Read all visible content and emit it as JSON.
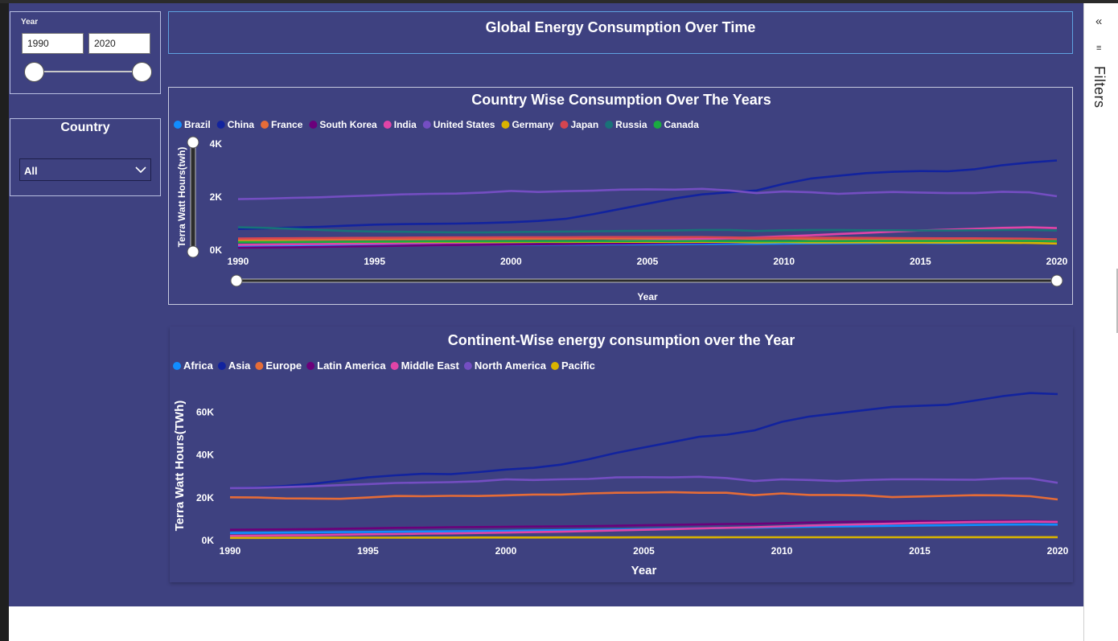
{
  "slicer_year": {
    "label": "Year",
    "from": "1990",
    "to": "2020"
  },
  "slicer_country": {
    "title": "Country",
    "value": "All"
  },
  "report_title": "Global Energy Consumption Over Time",
  "filters_pane": {
    "label": "Filters"
  },
  "colors": {
    "Brazil": "#118dff",
    "China": "#12239e",
    "France": "#e66c37",
    "South Korea": "#6b007b",
    "India": "#e044a7",
    "United States": "#744ec2",
    "Germany": "#d9b300",
    "Japan": "#d64550",
    "Russia": "#197278",
    "Canada": "#1aab40",
    "Africa": "#118dff",
    "Asia": "#12239e",
    "Europe": "#e66c37",
    "Latin America": "#6b007b",
    "Middle East": "#e044a7",
    "North America": "#744ec2",
    "Pacific": "#d9b300"
  },
  "chart_data": [
    {
      "type": "line",
      "title": "Country Wise Consumption Over The Years",
      "xlabel": "Year",
      "ylabel": "Terra Watt Hours(twh)",
      "xlim": [
        1990,
        2020
      ],
      "ylim": [
        0,
        4000
      ],
      "xticks": [
        1990,
        1995,
        2000,
        2005,
        2010,
        2015,
        2020
      ],
      "yticks": [
        {
          "v": 0,
          "label": "0K"
        },
        {
          "v": 2000,
          "label": "2K"
        },
        {
          "v": 4000,
          "label": "4K"
        }
      ],
      "legend_position": "top-left",
      "x": [
        1990,
        1991,
        1992,
        1993,
        1994,
        1995,
        1996,
        1997,
        1998,
        1999,
        2000,
        2001,
        2002,
        2003,
        2004,
        2005,
        2006,
        2007,
        2008,
        2009,
        2010,
        2011,
        2012,
        2013,
        2014,
        2015,
        2016,
        2017,
        2018,
        2019,
        2020
      ],
      "series": [
        {
          "name": "Brazil",
          "values": [
            150,
            155,
            160,
            165,
            170,
            175,
            180,
            185,
            190,
            195,
            200,
            205,
            210,
            215,
            220,
            225,
            230,
            235,
            240,
            240,
            250,
            255,
            260,
            265,
            270,
            270,
            265,
            270,
            275,
            280,
            275
          ]
        },
        {
          "name": "China",
          "values": [
            800,
            820,
            850,
            880,
            920,
            960,
            980,
            990,
            1000,
            1020,
            1050,
            1100,
            1180,
            1350,
            1550,
            1750,
            1950,
            2100,
            2180,
            2250,
            2500,
            2700,
            2800,
            2900,
            2950,
            2980,
            2970,
            3050,
            3200,
            3300,
            3380
          ]
        },
        {
          "name": "France",
          "values": [
            380,
            385,
            390,
            395,
            400,
            405,
            410,
            415,
            420,
            420,
            425,
            430,
            430,
            435,
            440,
            440,
            440,
            440,
            440,
            430,
            440,
            420,
            420,
            420,
            410,
            410,
            400,
            400,
            400,
            390,
            370
          ]
        },
        {
          "name": "South Korea",
          "values": [
            90,
            100,
            110,
            120,
            135,
            150,
            165,
            180,
            190,
            200,
            210,
            220,
            230,
            240,
            250,
            260,
            270,
            280,
            290,
            295,
            300,
            305,
            310,
            315,
            320,
            320,
            320,
            325,
            330,
            330,
            330
          ]
        },
        {
          "name": "India",
          "values": [
            200,
            210,
            220,
            230,
            240,
            250,
            260,
            270,
            280,
            290,
            300,
            310,
            320,
            330,
            350,
            370,
            390,
            420,
            450,
            480,
            520,
            560,
            610,
            650,
            700,
            740,
            770,
            800,
            840,
            860,
            830
          ]
        },
        {
          "name": "United States",
          "values": [
            1920,
            1940,
            1970,
            1990,
            2030,
            2060,
            2100,
            2120,
            2130,
            2170,
            2230,
            2190,
            2220,
            2240,
            2280,
            2290,
            2280,
            2310,
            2250,
            2150,
            2210,
            2180,
            2120,
            2160,
            2190,
            2170,
            2150,
            2150,
            2200,
            2180,
            2030
          ]
        },
        {
          "name": "Germany",
          "values": [
            320,
            318,
            315,
            312,
            310,
            312,
            315,
            313,
            311,
            310,
            310,
            312,
            310,
            312,
            313,
            312,
            310,
            312,
            310,
            290,
            300,
            290,
            290,
            295,
            285,
            285,
            285,
            283,
            280,
            270,
            250
          ]
        },
        {
          "name": "Japan",
          "values": [
            440,
            445,
            450,
            455,
            460,
            465,
            470,
            475,
            480,
            480,
            485,
            485,
            485,
            490,
            490,
            490,
            490,
            490,
            480,
            460,
            480,
            470,
            465,
            460,
            455,
            450,
            445,
            445,
            440,
            430,
            410
          ]
        },
        {
          "name": "Russia",
          "values": [
            860,
            840,
            800,
            760,
            720,
            700,
            690,
            680,
            670,
            670,
            680,
            690,
            700,
            710,
            720,
            730,
            740,
            760,
            760,
            720,
            750,
            760,
            760,
            750,
            750,
            740,
            740,
            750,
            760,
            760,
            740
          ]
        },
        {
          "name": "Canada",
          "values": [
            300,
            300,
            305,
            310,
            315,
            320,
            325,
            330,
            330,
            330,
            335,
            335,
            335,
            340,
            340,
            345,
            340,
            345,
            340,
            330,
            335,
            340,
            340,
            345,
            345,
            345,
            345,
            350,
            350,
            350,
            340
          ]
        }
      ]
    },
    {
      "type": "line",
      "title": "Continent-Wise energy consumption over the Year",
      "xlabel": "Year",
      "ylabel": "Terra Watt Hours(TWh)",
      "xlim": [
        1990,
        2020
      ],
      "ylim": [
        0,
        70000
      ],
      "xticks": [
        1990,
        1995,
        2000,
        2005,
        2010,
        2015,
        2020
      ],
      "yticks": [
        {
          "v": 0,
          "label": "0K"
        },
        {
          "v": 20000,
          "label": "20K"
        },
        {
          "v": 40000,
          "label": "40K"
        },
        {
          "v": 60000,
          "label": "60K"
        }
      ],
      "legend_position": "top-left",
      "x": [
        1990,
        1991,
        1992,
        1993,
        1994,
        1995,
        1996,
        1997,
        1998,
        1999,
        2000,
        2001,
        2002,
        2003,
        2004,
        2005,
        2006,
        2007,
        2008,
        2009,
        2010,
        2011,
        2012,
        2013,
        2014,
        2015,
        2016,
        2017,
        2018,
        2019,
        2020
      ],
      "series": [
        {
          "name": "Africa",
          "values": [
            3500,
            3600,
            3700,
            3800,
            3900,
            4000,
            4100,
            4200,
            4300,
            4400,
            4500,
            4650,
            4800,
            4950,
            5100,
            5300,
            5500,
            5700,
            5900,
            6000,
            6200,
            6400,
            6550,
            6700,
            6850,
            7000,
            7100,
            7250,
            7400,
            7500,
            7400
          ]
        },
        {
          "name": "Asia",
          "values": [
            24500,
            24800,
            25500,
            26500,
            28000,
            29500,
            30500,
            31200,
            31000,
            32000,
            33200,
            34000,
            35500,
            38000,
            41000,
            43500,
            46000,
            48500,
            49500,
            51500,
            55500,
            58000,
            59500,
            61000,
            62500,
            63000,
            63500,
            65500,
            67500,
            69000,
            68500
          ]
        },
        {
          "name": "Europe",
          "values": [
            20200,
            20100,
            19700,
            19600,
            19500,
            20100,
            20800,
            20700,
            20900,
            20800,
            21100,
            21500,
            21500,
            22000,
            22300,
            22400,
            22600,
            22300,
            22300,
            21200,
            22000,
            21300,
            21300,
            21100,
            20300,
            20600,
            20900,
            21200,
            21100,
            20700,
            19200
          ]
        },
        {
          "name": "Latin America",
          "values": [
            5000,
            5100,
            5200,
            5300,
            5500,
            5700,
            5900,
            6000,
            6200,
            6300,
            6400,
            6500,
            6600,
            6700,
            6900,
            7100,
            7300,
            7500,
            7700,
            7800,
            8100,
            8400,
            8600,
            8800,
            8900,
            9000,
            8900,
            9000,
            9100,
            9100,
            8800
          ]
        },
        {
          "name": "Middle East",
          "values": [
            2200,
            2300,
            2400,
            2500,
            2700,
            2900,
            3000,
            3200,
            3300,
            3500,
            3700,
            3900,
            4100,
            4400,
            4700,
            5000,
            5300,
            5600,
            5900,
            6200,
            6600,
            7000,
            7300,
            7600,
            7900,
            8200,
            8400,
            8600,
            8700,
            8800,
            8700
          ]
        },
        {
          "name": "North America",
          "values": [
            24500,
            24600,
            25000,
            25400,
            25900,
            26400,
            26900,
            27100,
            27300,
            27700,
            28600,
            28300,
            28600,
            28800,
            29500,
            29600,
            29500,
            29800,
            29200,
            27800,
            28600,
            28300,
            27800,
            28300,
            28600,
            28600,
            28500,
            28400,
            29000,
            29000,
            27000
          ]
        },
        {
          "name": "Pacific",
          "values": [
            1200,
            1220,
            1240,
            1260,
            1280,
            1300,
            1320,
            1340,
            1360,
            1380,
            1400,
            1410,
            1420,
            1430,
            1440,
            1460,
            1470,
            1480,
            1490,
            1490,
            1500,
            1500,
            1510,
            1510,
            1520,
            1520,
            1530,
            1540,
            1540,
            1550,
            1530
          ]
        }
      ]
    }
  ]
}
